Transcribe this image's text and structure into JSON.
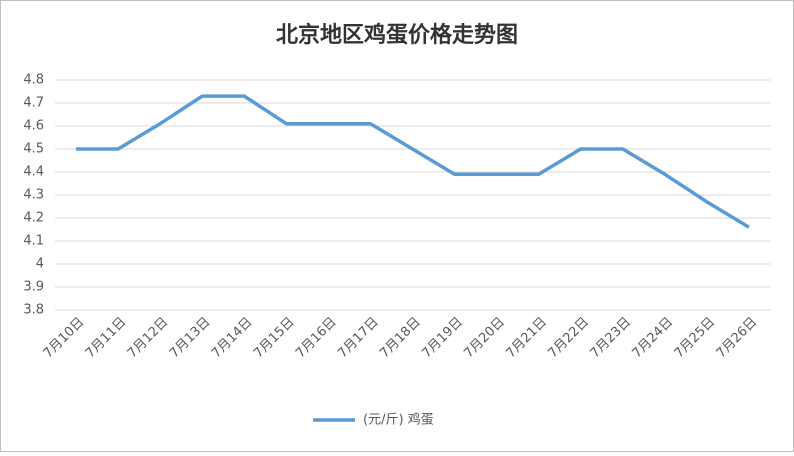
{
  "chart_data": {
    "type": "line",
    "title": "北京地区鸡蛋价格走势图",
    "categories": [
      "7月10日",
      "7月11日",
      "7月12日",
      "7月13日",
      "7月14日",
      "7月15日",
      "7月16日",
      "7月17日",
      "7月18日",
      "7月19日",
      "7月20日",
      "7月21日",
      "7月22日",
      "7月23日",
      "7月24日",
      "7月25日",
      "7月26日"
    ],
    "series": [
      {
        "name": "(元/斤) 鸡蛋",
        "color": "#5b9bd5",
        "values": [
          4.5,
          4.5,
          4.61,
          4.73,
          4.73,
          4.61,
          4.61,
          4.61,
          4.5,
          4.39,
          4.39,
          4.39,
          4.5,
          4.5,
          4.39,
          4.27,
          4.16
        ]
      }
    ],
    "ylim": [
      3.8,
      4.8
    ],
    "yticks": [
      3.8,
      3.9,
      4,
      4.1,
      4.2,
      4.3,
      4.4,
      4.5,
      4.6,
      4.7,
      4.8
    ],
    "grid": true,
    "legend": "bottom"
  }
}
